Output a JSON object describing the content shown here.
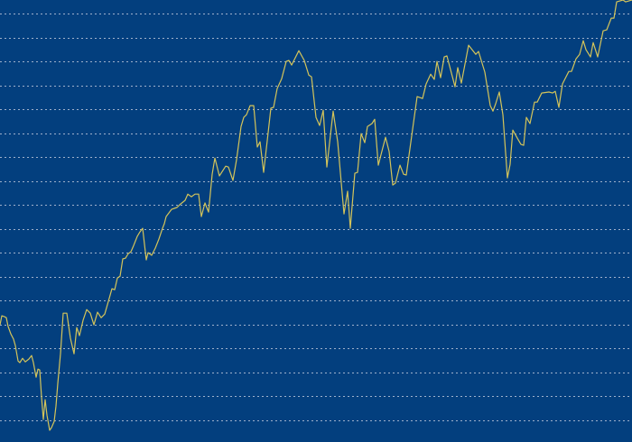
{
  "chart_data": {
    "type": "line",
    "title": "",
    "xlabel": "",
    "ylabel": "",
    "grid": {
      "horizontal": true,
      "vertical": false,
      "style": "dotted",
      "levels": [
        0,
        1,
        2,
        3,
        4,
        5,
        6,
        7,
        8,
        9,
        10,
        11,
        12,
        13,
        14,
        15,
        16,
        17
      ]
    },
    "xlim": [
      0,
      700
    ],
    "ylim": [
      -0.92,
      17.57
    ],
    "legend": "none",
    "colors": {
      "background": "#033f7e",
      "line": "#d4c45a",
      "grid": "#9fb1cc"
    },
    "series": [
      {
        "x": [
          0,
          2,
          5,
          7,
          9,
          12,
          15,
          17,
          20,
          22,
          25,
          28,
          32,
          35,
          37,
          40,
          42,
          44,
          46,
          48,
          50,
          52,
          55,
          57,
          60,
          62,
          64,
          67,
          70,
          74,
          78,
          82,
          85,
          88,
          92,
          96,
          100,
          104,
          108,
          112,
          116,
          120,
          124,
          127,
          130,
          133,
          136,
          139,
          142,
          145,
          148,
          152,
          155,
          158,
          162,
          164,
          168,
          172,
          176,
          180,
          182,
          184,
          190,
          196,
          200,
          205,
          208,
          212,
          216,
          220,
          223,
          227,
          231,
          235,
          238,
          243,
          250,
          253,
          258,
          262,
          267,
          270,
          273,
          277,
          281,
          285,
          288,
          292,
          297,
          300,
          303,
          307,
          312,
          317,
          320,
          323,
          331,
          337,
          342,
          345,
          350,
          354,
          358,
          362,
          369,
          374,
          381,
          385,
          388,
          393,
          396,
          400,
          404,
          407,
          412,
          415,
          419,
          427,
          431,
          435,
          438,
          443,
          447,
          450,
          462,
          468,
          472,
          477,
          481,
          484,
          488,
          492,
          495,
          504,
          507,
          511,
          519,
          527,
          530,
          537,
          543,
          546,
          549,
          553,
          557,
          562,
          565,
          568,
          573,
          577,
          580,
          583,
          587,
          592,
          595,
          600,
          608,
          612,
          615,
          619,
          623,
          630,
          633,
          638,
          642,
          646,
          649,
          654,
          657,
          662,
          668,
          672,
          677,
          680,
          683,
          690,
          693,
          700
        ],
        "y": [
          3.98,
          4.36,
          4.32,
          4.28,
          3.91,
          3.6,
          3.38,
          3.11,
          2.47,
          2.4,
          2.58,
          2.43,
          2.55,
          2.7,
          2.4,
          1.79,
          2.13,
          2.09,
          0.96,
          0.02,
          0.85,
          0.21,
          -0.43,
          -0.32,
          -0.06,
          0.58,
          1.53,
          2.77,
          4.47,
          4.47,
          3.42,
          2.77,
          3.87,
          3.53,
          4.17,
          4.62,
          4.47,
          3.98,
          4.51,
          4.28,
          4.43,
          4.96,
          5.49,
          5.45,
          5.94,
          6.02,
          6.74,
          6.77,
          6.96,
          7.04,
          7.3,
          7.68,
          7.87,
          8.02,
          6.7,
          7.0,
          6.89,
          7.19,
          7.57,
          8.02,
          8.21,
          8.51,
          8.81,
          8.89,
          9.04,
          9.19,
          9.45,
          9.34,
          9.45,
          9.45,
          8.51,
          9.08,
          8.7,
          10.28,
          10.96,
          10.21,
          10.62,
          10.58,
          10.02,
          10.89,
          12.28,
          12.66,
          12.77,
          13.15,
          13.15,
          11.42,
          11.64,
          10.36,
          12.02,
          13.04,
          13.08,
          13.87,
          14.28,
          15.0,
          15.04,
          14.85,
          15.45,
          15.04,
          14.43,
          14.36,
          12.66,
          12.32,
          12.96,
          10.58,
          12.92,
          11.64,
          8.62,
          9.57,
          8.02,
          10.32,
          10.36,
          11.98,
          11.6,
          12.28,
          12.4,
          12.58,
          10.66,
          11.83,
          11.23,
          9.83,
          9.91,
          10.66,
          10.28,
          10.25,
          13.53,
          13.45,
          14.06,
          14.47,
          14.25,
          15.0,
          14.32,
          15.19,
          15.23,
          13.94,
          14.74,
          14.09,
          15.68,
          15.3,
          15.42,
          14.55,
          13.15,
          12.92,
          13.23,
          13.72,
          12.77,
          10.13,
          10.7,
          12.13,
          11.79,
          11.53,
          11.49,
          12.66,
          12.4,
          13.3,
          13.3,
          13.68,
          13.72,
          13.68,
          13.75,
          13.08,
          14.06,
          14.58,
          14.58,
          15.11,
          15.3,
          15.87,
          15.49,
          15.19,
          15.79,
          15.19,
          16.28,
          16.32,
          16.81,
          16.81,
          17.49,
          17.57,
          17.49,
          17.57
        ]
      }
    ]
  }
}
